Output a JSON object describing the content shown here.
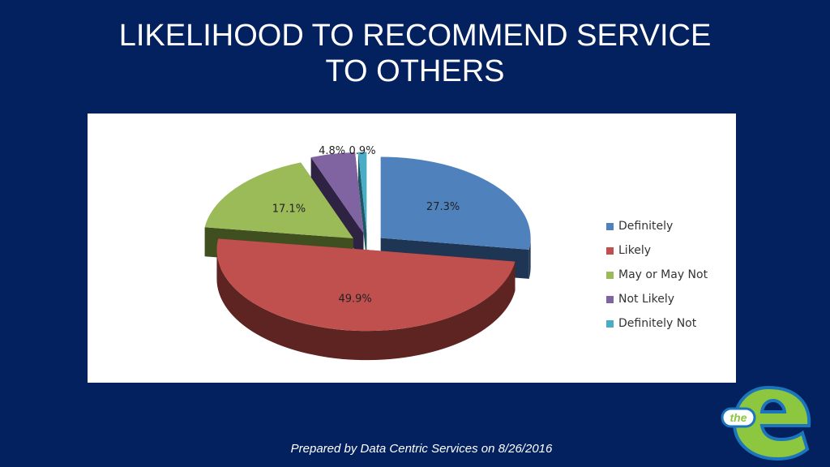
{
  "slide": {
    "title_line1": "LIKELIHOOD TO RECOMMEND SERVICE",
    "title_line2": "TO OTHERS",
    "footer": "Prepared by Data Centric Services on 8/26/2016",
    "logo_text": "the e"
  },
  "chart_data": {
    "type": "pie",
    "style": "3d-exploded",
    "legend_position": "right",
    "categories": [
      "Definitely",
      "Likely",
      "May or May Not",
      "Not Likely",
      "Definitely Not"
    ],
    "values": [
      27.3,
      49.9,
      17.1,
      4.8,
      0.9
    ],
    "labels": [
      "27.3%",
      "49.9%",
      "17.1%",
      "4.8%",
      "0.9%"
    ],
    "colors": [
      "#4F81BD",
      "#C0504D",
      "#9BBB59",
      "#8064A2",
      "#4BACC6"
    ],
    "side_colors": [
      "#1F3554",
      "#5E2422",
      "#404F20",
      "#2E2342",
      "#1E5664"
    ]
  }
}
